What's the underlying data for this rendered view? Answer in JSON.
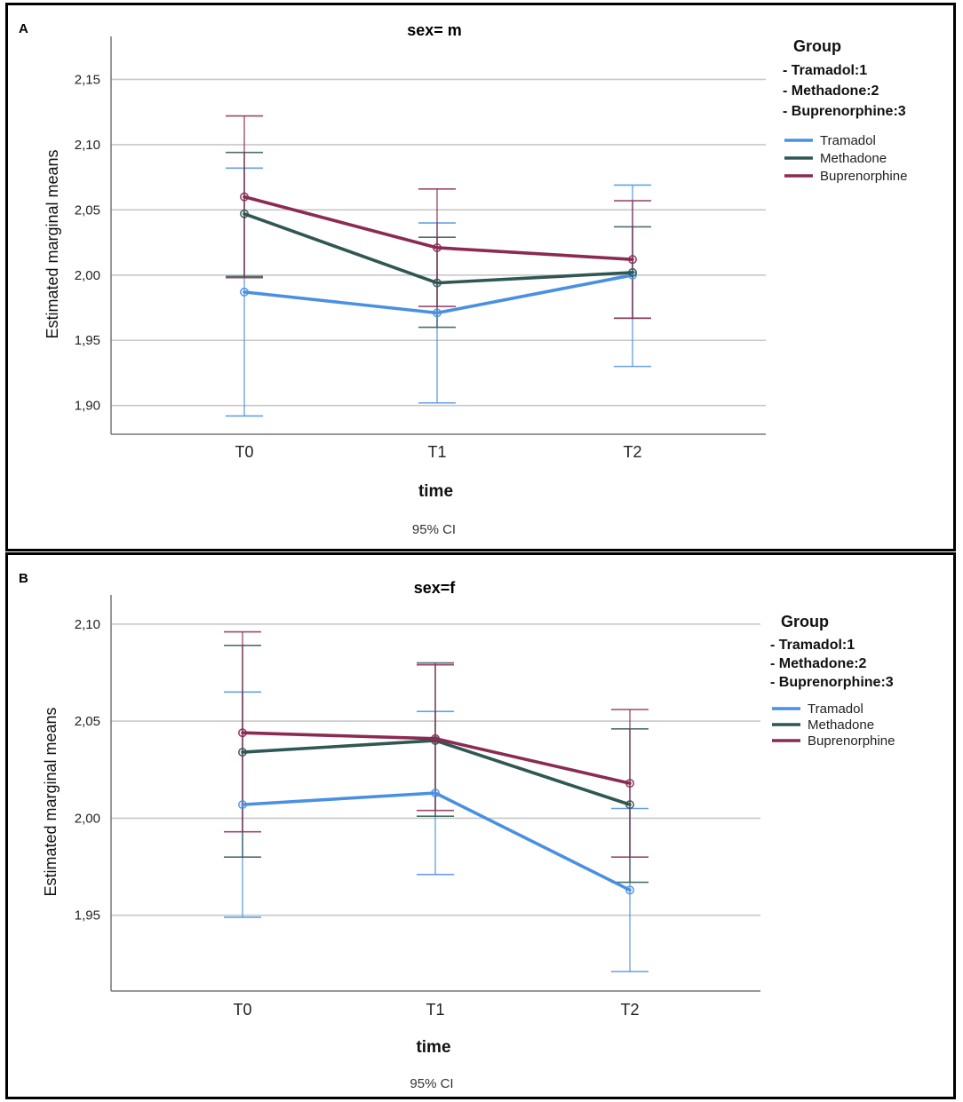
{
  "colors": {
    "Tramadol": "#4a90e2",
    "Methadone": "#2f5753",
    "Buprenorphine": "#8b2a52",
    "grid": "#c8c8c8",
    "axis": "#777777"
  },
  "chart_data": [
    {
      "type": "line",
      "panel": "A",
      "title": "sex= m",
      "xlabel": "time",
      "ylabel": "Estimated marginal means",
      "note": "95% CI",
      "categories": [
        "T0",
        "T1",
        "T2"
      ],
      "yticks": [
        "2,15",
        "2,10",
        "2,05",
        "2,00",
        "1,95",
        "1,90"
      ],
      "ytick_values": [
        2.15,
        2.1,
        2.05,
        2.0,
        1.95,
        1.9
      ],
      "ylim": [
        1.878,
        2.183
      ],
      "legend": {
        "title": "Group",
        "codes": [
          "- Tramadol:1",
          "- Methadone:2",
          "- Buprenorphine:3"
        ],
        "entries": [
          "Tramadol",
          "Methadone",
          "Buprenorphine"
        ]
      },
      "series": [
        {
          "name": "Tramadol",
          "values": [
            1.987,
            1.971,
            2.0
          ],
          "ci_low": [
            1.892,
            1.902,
            1.93
          ],
          "ci_high": [
            2.082,
            2.04,
            2.069
          ]
        },
        {
          "name": "Methadone",
          "values": [
            2.047,
            1.994,
            2.002
          ],
          "ci_low": [
            1.999,
            1.96,
            1.967
          ],
          "ci_high": [
            2.094,
            2.029,
            2.037
          ]
        },
        {
          "name": "Buprenorphine",
          "values": [
            2.06,
            2.021,
            2.012
          ],
          "ci_low": [
            1.998,
            1.976,
            1.967
          ],
          "ci_high": [
            2.122,
            2.066,
            2.057
          ]
        }
      ]
    },
    {
      "type": "line",
      "panel": "B",
      "title": "sex=f",
      "xlabel": "time",
      "ylabel": "Estimated marginal means",
      "note": "95% CI",
      "categories": [
        "T0",
        "T1",
        "T2"
      ],
      "yticks": [
        "2,10",
        "2,05",
        "2,00",
        "1,95"
      ],
      "ytick_values": [
        2.1,
        2.05,
        2.0,
        1.95
      ],
      "ylim": [
        1.911,
        2.115
      ],
      "legend": {
        "title": "Group",
        "codes": [
          "- Tramadol:1",
          "- Methadone:2",
          "- Buprenorphine:3"
        ],
        "entries": [
          "Tramadol",
          "Methadone",
          "Buprenorphine"
        ]
      },
      "series": [
        {
          "name": "Tramadol",
          "values": [
            2.007,
            2.013,
            1.963
          ],
          "ci_low": [
            1.949,
            1.971,
            1.921
          ],
          "ci_high": [
            2.065,
            2.055,
            2.005
          ]
        },
        {
          "name": "Methadone",
          "values": [
            2.034,
            2.04,
            2.007
          ],
          "ci_low": [
            1.98,
            2.001,
            1.967
          ],
          "ci_high": [
            2.089,
            2.08,
            2.046
          ]
        },
        {
          "name": "Buprenorphine",
          "values": [
            2.044,
            2.041,
            2.018
          ],
          "ci_low": [
            1.993,
            2.004,
            1.98
          ],
          "ci_high": [
            2.096,
            2.079,
            2.056
          ]
        }
      ]
    }
  ]
}
